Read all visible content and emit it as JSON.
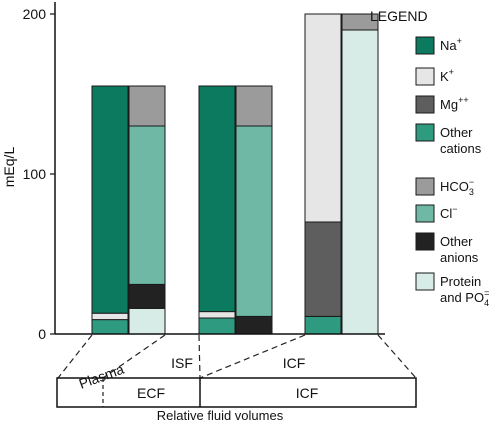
{
  "chart_data": {
    "type": "bar",
    "stacked": true,
    "ylabel": "mEq/L",
    "ylim": [
      0,
      200
    ],
    "yticks": [
      0,
      100,
      200
    ],
    "grid": false,
    "legend_title": "LEGEND",
    "legend_position": "right",
    "legend": [
      {
        "key": "na",
        "label": "Na",
        "sup": "+",
        "sub": "",
        "color": "#0b7a5f"
      },
      {
        "key": "k",
        "label": "K",
        "sup": "+",
        "sub": "",
        "color": "#e6e6e6"
      },
      {
        "key": "mg",
        "label": "Mg",
        "sup": "++",
        "sub": "",
        "color": "#5e5e5e"
      },
      {
        "key": "oc",
        "label": "Other cations",
        "sup": "",
        "sub": "",
        "color": "#2e9a80"
      },
      {
        "key": "hco3",
        "label": "HCO",
        "sup": "−",
        "sub": "3",
        "color": "#9b9b9b"
      },
      {
        "key": "cl",
        "label": "Cl",
        "sup": "−",
        "sub": "",
        "color": "#6fb8a6"
      },
      {
        "key": "oa",
        "label": "Other anions",
        "sup": "",
        "sub": "",
        "color": "#222222"
      },
      {
        "key": "prot",
        "label": "Protein and PO",
        "sup": "=",
        "sub": "4",
        "color": "#d7ece6"
      }
    ],
    "compartments": [
      {
        "name": "Plasma",
        "cations": [
          {
            "key": "oc",
            "value": 9
          },
          {
            "key": "k",
            "value": 4
          },
          {
            "key": "na",
            "value": 142
          }
        ],
        "anions": [
          {
            "key": "prot",
            "value": 16
          },
          {
            "key": "oa",
            "value": 15
          },
          {
            "key": "cl",
            "value": 99
          },
          {
            "key": "hco3",
            "value": 25
          }
        ]
      },
      {
        "name": "ISF",
        "cations": [
          {
            "key": "oc",
            "value": 10
          },
          {
            "key": "k",
            "value": 4
          },
          {
            "key": "na",
            "value": 141
          }
        ],
        "anions": [
          {
            "key": "oa",
            "value": 11
          },
          {
            "key": "cl",
            "value": 119
          },
          {
            "key": "hco3",
            "value": 25
          }
        ]
      },
      {
        "name": "ICF",
        "cations": [
          {
            "key": "oc",
            "value": 11
          },
          {
            "key": "mg",
            "value": 59
          },
          {
            "key": "k",
            "value": 130
          }
        ],
        "anions": [
          {
            "key": "prot",
            "value": 190
          },
          {
            "key": "hco3",
            "value": 10
          }
        ]
      }
    ],
    "volume_bar": {
      "caption": "Relative fluid volumes",
      "segments": [
        {
          "label": "ECF"
        },
        {
          "label": "ICF"
        }
      ]
    }
  }
}
